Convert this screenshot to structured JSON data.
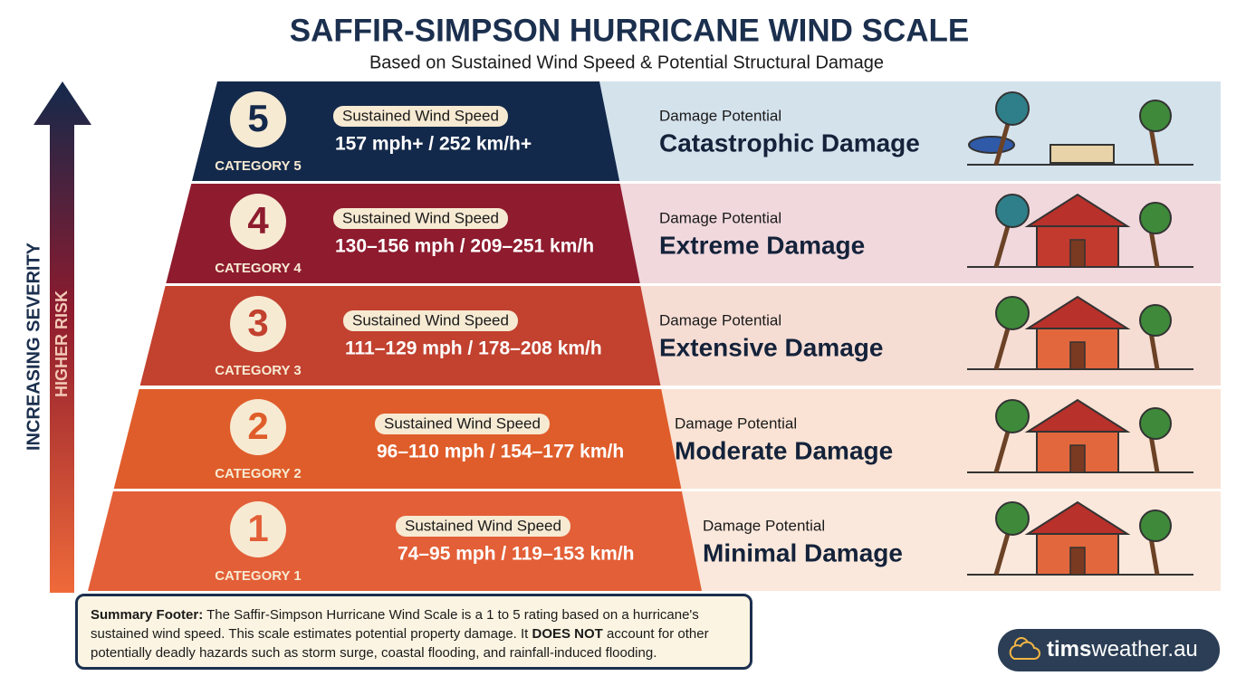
{
  "header": {
    "title": "SAFFIR-SIMPSON HURRICANE WIND SCALE",
    "subtitle": "Based on Sustained Wind Speed & Potential Structural Damage"
  },
  "side": {
    "severity": "INCREASING SEVERITY",
    "risk": "HIGHER RISK"
  },
  "categories": [
    {
      "number": 5,
      "label": "CATEGORY 5",
      "speed_label": "Sustained Wind Speed",
      "speed": "157 mph+ / 252 km/h+",
      "damage_label": "Damage Potential",
      "damage": "Catastrophic Damage"
    },
    {
      "number": 4,
      "label": "CATEGORY 4",
      "speed_label": "Sustained Wind Speed",
      "speed": "130–156 mph / 209–251 km/h",
      "damage_label": "Damage Potential",
      "damage": "Extreme Damage"
    },
    {
      "number": 3,
      "label": "CATEGORY 3",
      "speed_label": "Sustained Wind Speed",
      "speed": "111–129 mph / 178–208 km/h",
      "damage_label": "Damage Potential",
      "damage": "Extensive Damage"
    },
    {
      "number": 2,
      "label": "CATEGORY 2",
      "speed_label": "Sustained Wind Speed",
      "speed": "96–110 mph / 154–177 km/h",
      "damage_label": "Damage Potential",
      "damage": "Moderate Damage"
    },
    {
      "number": 1,
      "label": "CATEGORY 1",
      "speed_label": "Sustained Wind Speed",
      "speed": "74–95 mph / 119–153 km/h",
      "damage_label": "Damage Potential",
      "damage": "Minimal Damage"
    }
  ],
  "footer": {
    "lead": "Summary Footer:",
    "text1": " The Saffir-Simpson Hurricane Wind Scale is a 1 to 5 rating based on a hurricane's sustained wind speed. This scale estimates potential property damage. It ",
    "emphasis": "DOES NOT",
    "text2": " account for other potentially deadly hazards such as storm surge, coastal flooding, and rainfall-induced flooding."
  },
  "brand": {
    "bold": "tims",
    "rest": "weather.au"
  }
}
